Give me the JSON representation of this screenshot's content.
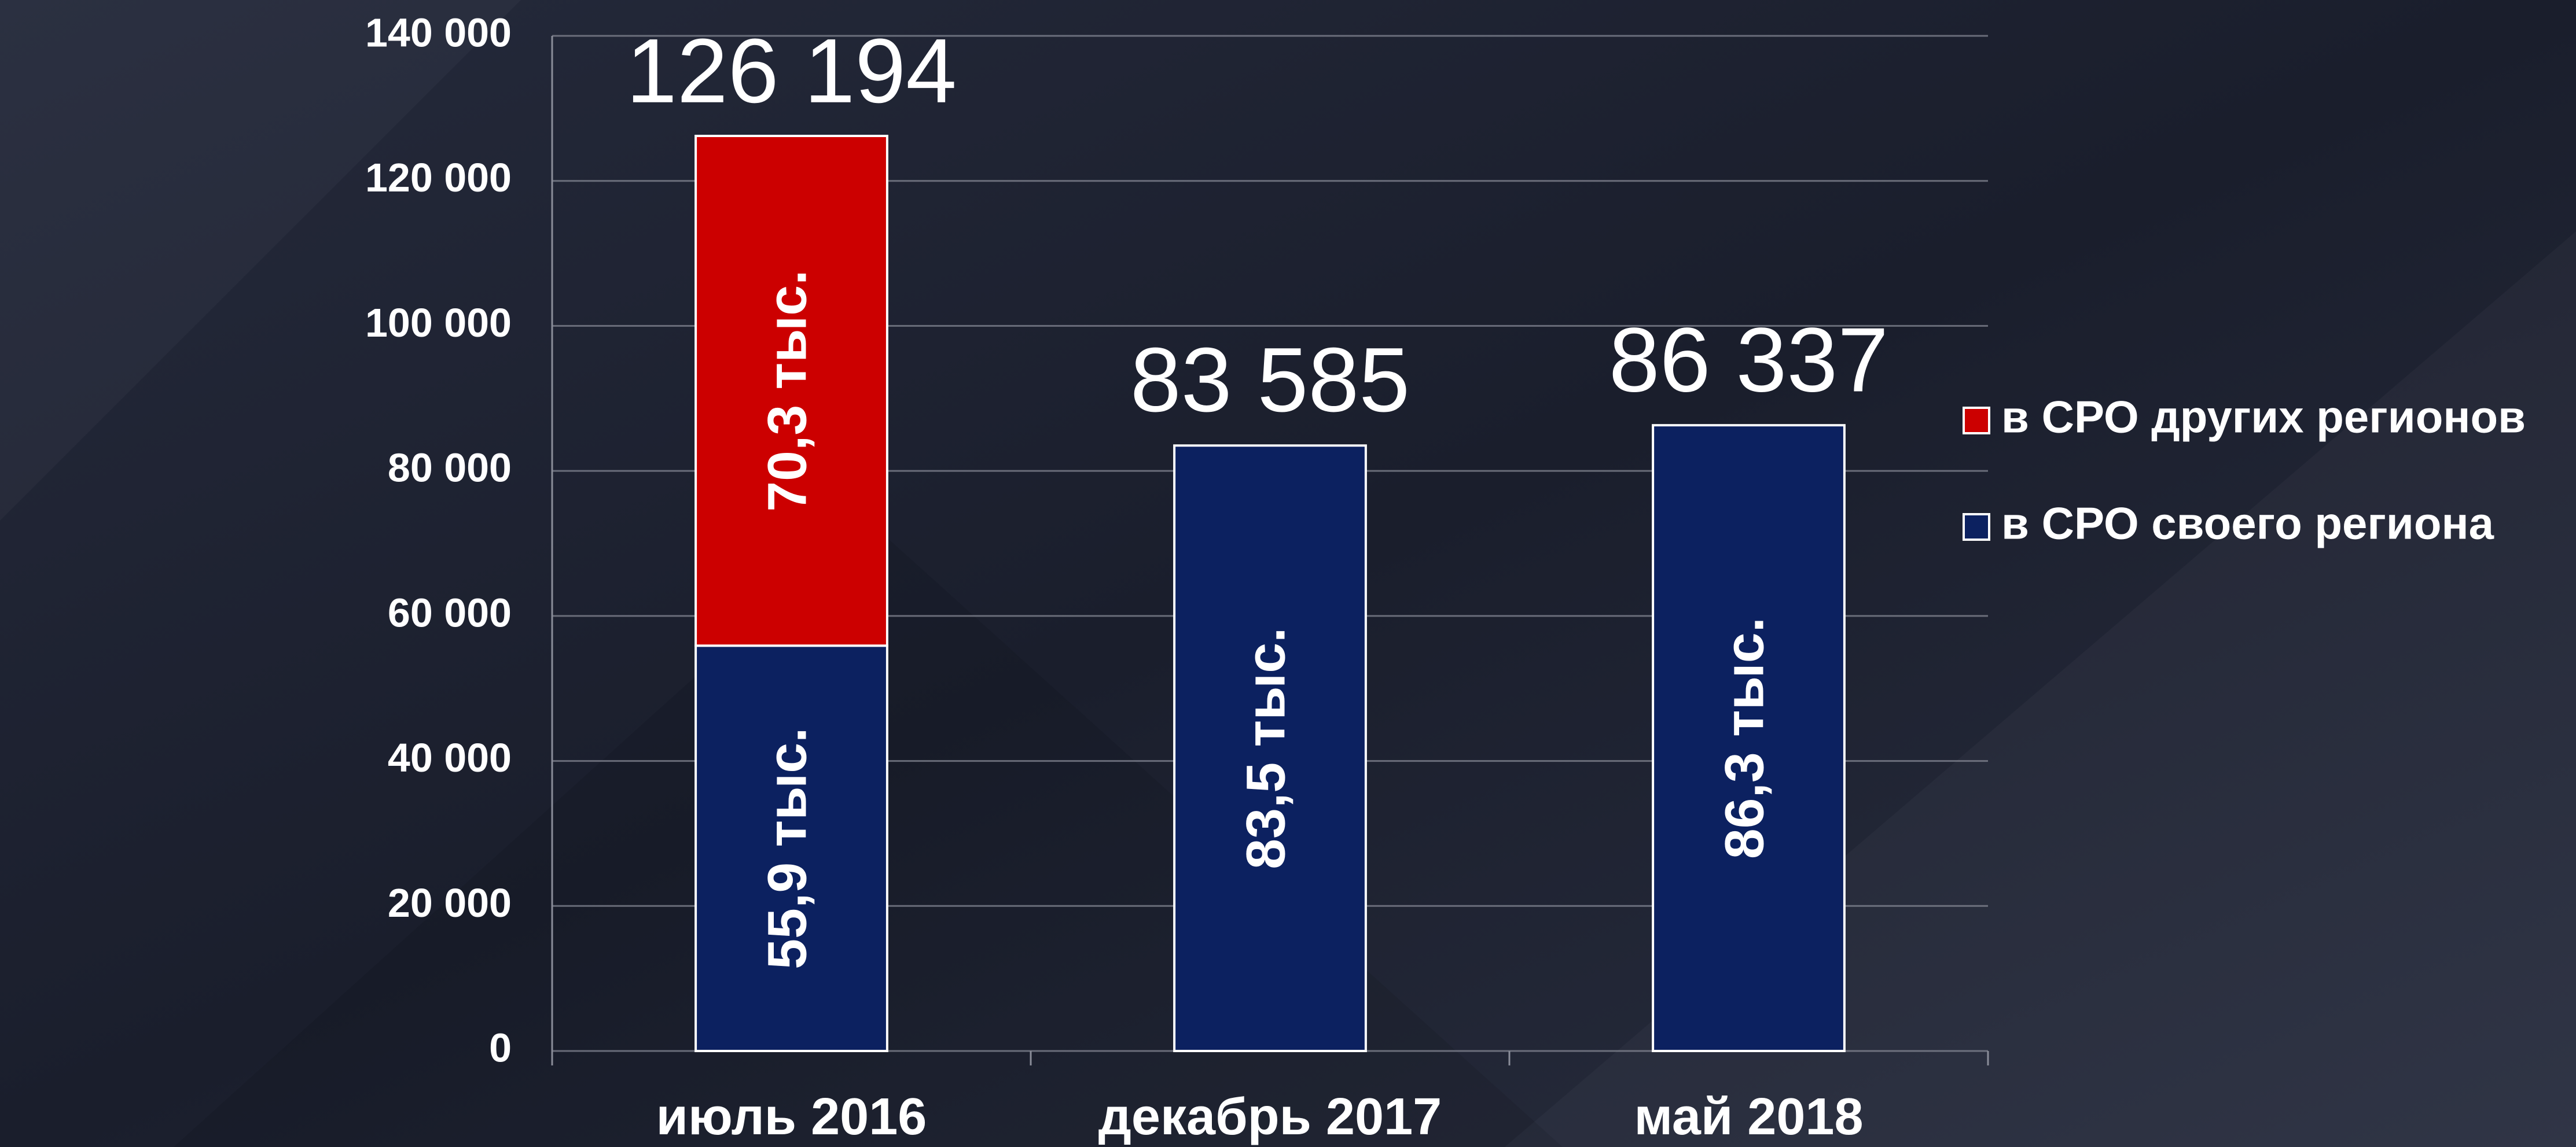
{
  "chart_data": {
    "type": "stacked_bar",
    "categories": [
      "июль 2016",
      "декабрь 2017",
      "май 2018"
    ],
    "series": [
      {
        "name": "в СРО своего региона",
        "color": "#0c2160",
        "values": [
          55900,
          83500,
          86300
        ],
        "value_labels": [
          "55,9 тыс.",
          "83,5 тыс.",
          "86,3 тыс."
        ]
      },
      {
        "name": "в СРО других регионов",
        "color": "#cc0000",
        "values": [
          70300,
          null,
          null
        ],
        "value_labels": [
          "70,3 тыс.",
          null,
          null
        ]
      }
    ],
    "totals": [
      126194,
      83585,
      86337
    ],
    "total_labels": [
      "126 194",
      "83 585",
      "86 337"
    ],
    "ylim": [
      0,
      140000
    ],
    "yticks": [
      0,
      {
        "value": 20000,
        "label": "20 000"
      },
      {
        "value": 40000,
        "label": "40 000"
      },
      {
        "value": 60000,
        "label": "60 000"
      },
      {
        "value": 80000,
        "label": "80 000"
      },
      {
        "value": 100000,
        "label": "100 000"
      },
      {
        "value": 120000,
        "label": "120 000"
      },
      {
        "value": 140000,
        "label": "140 000"
      }
    ],
    "grid": true,
    "legend": "right"
  }
}
